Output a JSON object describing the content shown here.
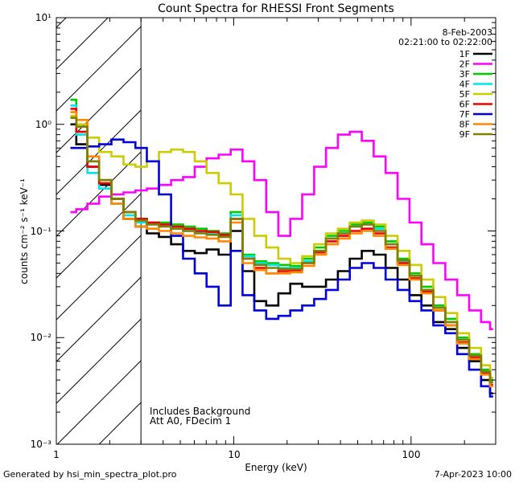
{
  "chart_data": {
    "type": "line",
    "title": "Count Spectra for RHESSI Front Segments",
    "xlabel": "Energy (keV)",
    "ylabel": "counts cm⁻² s⁻¹ keV⁻¹",
    "xscale": "log",
    "yscale": "log",
    "xlim": [
      1,
      300
    ],
    "ylim": [
      0.001,
      10
    ],
    "x_tick_labels": [
      "1",
      "10",
      "100"
    ],
    "y_tick_labels": [
      "10⁻³",
      "10⁻²",
      "10⁻¹",
      "10⁰",
      "10¹"
    ],
    "date": "8-Feb-2003",
    "time_range": "02:21:00 to 02:22:00",
    "annotations": [
      "Includes Background",
      "Att A0, FDecim 1"
    ],
    "hatched_region_max_energy": 3,
    "series": [
      {
        "name": "1F",
        "color": "#000000",
        "x": [
          1.2,
          1.4,
          1.6,
          1.9,
          2.2,
          2.6,
          3.0,
          3.5,
          4.1,
          4.8,
          5.6,
          6.5,
          7.6,
          8.9,
          10.4,
          12.1,
          14.1,
          16.5,
          19.3,
          22.5,
          26.3,
          30.7,
          35.8,
          41.8,
          48.8,
          57,
          66.5,
          77.7,
          90.7,
          105.9,
          123.6,
          144.3,
          168.5,
          196.7,
          229.7,
          268.1,
          290
        ],
        "values": [
          1.0,
          0.65,
          0.4,
          0.27,
          0.2,
          0.13,
          0.11,
          0.095,
          0.088,
          0.075,
          0.065,
          0.062,
          0.067,
          0.06,
          0.1,
          0.042,
          0.022,
          0.02,
          0.026,
          0.032,
          0.03,
          0.03,
          0.035,
          0.042,
          0.055,
          0.065,
          0.06,
          0.045,
          0.035,
          0.025,
          0.02,
          0.014,
          0.012,
          0.008,
          0.006,
          0.004,
          0.003
        ]
      },
      {
        "name": "2F",
        "color": "#ff00ff",
        "x": [
          1.2,
          1.4,
          1.6,
          1.9,
          2.2,
          2.6,
          3.0,
          3.5,
          4.1,
          4.8,
          5.6,
          6.5,
          7.6,
          8.9,
          10.4,
          12.1,
          14.1,
          16.5,
          19.3,
          22.5,
          26.3,
          30.7,
          35.8,
          41.8,
          48.8,
          57,
          66.5,
          77.7,
          90.7,
          105.9,
          123.6,
          144.3,
          168.5,
          196.7,
          229.7,
          268.1,
          290
        ],
        "values": [
          0.15,
          0.16,
          0.18,
          0.21,
          0.22,
          0.23,
          0.24,
          0.25,
          0.27,
          0.3,
          0.32,
          0.4,
          0.48,
          0.52,
          0.58,
          0.45,
          0.3,
          0.15,
          0.09,
          0.13,
          0.22,
          0.4,
          0.6,
          0.8,
          0.85,
          0.7,
          0.5,
          0.35,
          0.2,
          0.12,
          0.075,
          0.05,
          0.035,
          0.025,
          0.018,
          0.014,
          0.012
        ]
      },
      {
        "name": "3F",
        "color": "#00cc00",
        "x": [
          1.2,
          1.4,
          1.6,
          1.9,
          2.2,
          2.6,
          3.0,
          3.5,
          4.1,
          4.8,
          5.6,
          6.5,
          7.6,
          8.9,
          10.4,
          12.1,
          14.1,
          16.5,
          19.3,
          22.5,
          26.3,
          30.7,
          35.8,
          41.8,
          48.8,
          57,
          66.5,
          77.7,
          90.7,
          105.9,
          123.6,
          144.3,
          168.5,
          196.7,
          229.7,
          268.1,
          290
        ],
        "values": [
          1.7,
          0.95,
          0.45,
          0.3,
          0.2,
          0.15,
          0.13,
          0.12,
          0.12,
          0.115,
          0.11,
          0.105,
          0.1,
          0.095,
          0.15,
          0.06,
          0.052,
          0.05,
          0.048,
          0.047,
          0.055,
          0.07,
          0.09,
          0.1,
          0.115,
          0.12,
          0.11,
          0.08,
          0.055,
          0.04,
          0.03,
          0.02,
          0.015,
          0.01,
          0.007,
          0.005,
          0.004
        ]
      },
      {
        "name": "4F",
        "color": "#00e5e5",
        "x": [
          1.2,
          1.4,
          1.6,
          1.9,
          2.2,
          2.6,
          3.0,
          3.5,
          4.1,
          4.8,
          5.6,
          6.5,
          7.6,
          8.9,
          10.4,
          12.1,
          14.1,
          16.5,
          19.3,
          22.5,
          26.3,
          30.7,
          35.8,
          41.8,
          48.8,
          57,
          66.5,
          77.7,
          90.7,
          105.9,
          123.6,
          144.3,
          168.5,
          196.7,
          229.7,
          268.1,
          290
        ],
        "values": [
          1.5,
          0.8,
          0.35,
          0.25,
          0.18,
          0.14,
          0.12,
          0.115,
          0.11,
          0.105,
          0.1,
          0.098,
          0.095,
          0.09,
          0.14,
          0.058,
          0.05,
          0.048,
          0.045,
          0.045,
          0.052,
          0.065,
          0.085,
          0.095,
          0.11,
          0.115,
          0.105,
          0.075,
          0.052,
          0.038,
          0.028,
          0.019,
          0.014,
          0.0095,
          0.0068,
          0.0048,
          0.0038
        ]
      },
      {
        "name": "5F",
        "color": "#cccc00",
        "x": [
          1.2,
          1.4,
          1.6,
          1.9,
          2.2,
          2.6,
          3.0,
          3.5,
          4.1,
          4.8,
          5.6,
          6.5,
          7.6,
          8.9,
          10.4,
          12.1,
          14.1,
          16.5,
          19.3,
          22.5,
          26.3,
          30.7,
          35.8,
          41.8,
          48.8,
          57,
          66.5,
          77.7,
          90.7,
          105.9,
          123.6,
          144.3,
          168.5,
          196.7,
          229.7,
          268.1,
          290
        ],
        "values": [
          1.2,
          1.0,
          0.75,
          0.55,
          0.5,
          0.42,
          0.4,
          0.45,
          0.55,
          0.58,
          0.55,
          0.45,
          0.35,
          0.28,
          0.22,
          0.13,
          0.09,
          0.07,
          0.055,
          0.05,
          0.058,
          0.075,
          0.095,
          0.105,
          0.12,
          0.125,
          0.115,
          0.09,
          0.065,
          0.048,
          0.035,
          0.024,
          0.017,
          0.011,
          0.008,
          0.0055,
          0.0042
        ]
      },
      {
        "name": "6F",
        "color": "#ee0000",
        "x": [
          1.2,
          1.4,
          1.6,
          1.9,
          2.2,
          2.6,
          3.0,
          3.5,
          4.1,
          4.8,
          5.6,
          6.5,
          7.6,
          8.9,
          10.4,
          12.1,
          14.1,
          16.5,
          19.3,
          22.5,
          26.3,
          30.7,
          35.8,
          41.8,
          48.8,
          57,
          66.5,
          77.7,
          90.7,
          105.9,
          123.6,
          144.3,
          168.5,
          196.7,
          229.7,
          268.1,
          290
        ],
        "values": [
          1.4,
          0.85,
          0.4,
          0.28,
          0.2,
          0.15,
          0.13,
          0.12,
          0.115,
          0.11,
          0.105,
          0.1,
          0.098,
          0.092,
          0.13,
          0.055,
          0.045,
          0.04,
          0.042,
          0.043,
          0.05,
          0.063,
          0.08,
          0.09,
          0.1,
          0.105,
          0.095,
          0.07,
          0.05,
          0.036,
          0.027,
          0.018,
          0.013,
          0.009,
          0.0065,
          0.0046,
          0.0036
        ]
      },
      {
        "name": "7F",
        "color": "#0000dd",
        "x": [
          1.2,
          1.4,
          1.6,
          1.9,
          2.2,
          2.6,
          3.0,
          3.5,
          4.1,
          4.8,
          5.6,
          6.5,
          7.6,
          8.9,
          10.4,
          12.1,
          14.1,
          16.5,
          19.3,
          22.5,
          26.3,
          30.7,
          35.8,
          41.8,
          48.8,
          57,
          66.5,
          77.7,
          90.7,
          105.9,
          123.6,
          144.3,
          168.5,
          196.7,
          229.7,
          268.1,
          290
        ],
        "values": [
          0.6,
          0.6,
          0.62,
          0.65,
          0.72,
          0.68,
          0.6,
          0.45,
          0.22,
          0.09,
          0.055,
          0.04,
          0.03,
          0.02,
          0.065,
          0.025,
          0.018,
          0.015,
          0.016,
          0.018,
          0.02,
          0.023,
          0.028,
          0.035,
          0.045,
          0.05,
          0.045,
          0.035,
          0.028,
          0.022,
          0.018,
          0.013,
          0.011,
          0.007,
          0.005,
          0.0035,
          0.0028
        ]
      },
      {
        "name": "8F",
        "color": "#ff8800",
        "x": [
          1.2,
          1.4,
          1.6,
          1.9,
          2.2,
          2.6,
          3.0,
          3.5,
          4.1,
          4.8,
          5.6,
          6.5,
          7.6,
          8.9,
          10.4,
          12.1,
          14.1,
          16.5,
          19.3,
          22.5,
          26.3,
          30.7,
          35.8,
          41.8,
          48.8,
          57,
          66.5,
          77.7,
          90.7,
          105.9,
          123.6,
          144.3,
          168.5,
          196.7,
          229.7,
          268.1,
          290
        ],
        "values": [
          1.3,
          1.1,
          0.5,
          0.3,
          0.18,
          0.13,
          0.11,
          0.105,
          0.1,
          0.095,
          0.09,
          0.087,
          0.085,
          0.08,
          0.12,
          0.05,
          0.043,
          0.04,
          0.04,
          0.041,
          0.047,
          0.06,
          0.075,
          0.085,
          0.095,
          0.1,
          0.09,
          0.068,
          0.048,
          0.035,
          0.026,
          0.018,
          0.013,
          0.0088,
          0.0063,
          0.0045,
          0.0035
        ]
      },
      {
        "name": "9F",
        "color": "#808000",
        "x": [
          1.2,
          1.4,
          1.6,
          1.9,
          2.2,
          2.6,
          3.0,
          3.5,
          4.1,
          4.8,
          5.6,
          6.5,
          7.6,
          8.9,
          10.4,
          12.1,
          14.1,
          16.5,
          19.3,
          22.5,
          26.3,
          30.7,
          35.8,
          41.8,
          48.8,
          57,
          66.5,
          77.7,
          90.7,
          105.9,
          123.6,
          144.3,
          168.5,
          196.7,
          229.7,
          268.1,
          290
        ],
        "values": [
          1.15,
          0.95,
          0.45,
          0.3,
          0.2,
          0.15,
          0.125,
          0.115,
          0.11,
          0.105,
          0.1,
          0.095,
          0.092,
          0.088,
          0.13,
          0.055,
          0.048,
          0.045,
          0.044,
          0.044,
          0.05,
          0.065,
          0.085,
          0.095,
          0.11,
          0.115,
          0.1,
          0.075,
          0.053,
          0.038,
          0.028,
          0.019,
          0.014,
          0.0095,
          0.0068,
          0.0048,
          0.0038
        ]
      }
    ]
  },
  "footer": {
    "generated_by": "Generated by hsi_min_spectra_plot.pro",
    "generated_date": "7-Apr-2023 10:00"
  }
}
